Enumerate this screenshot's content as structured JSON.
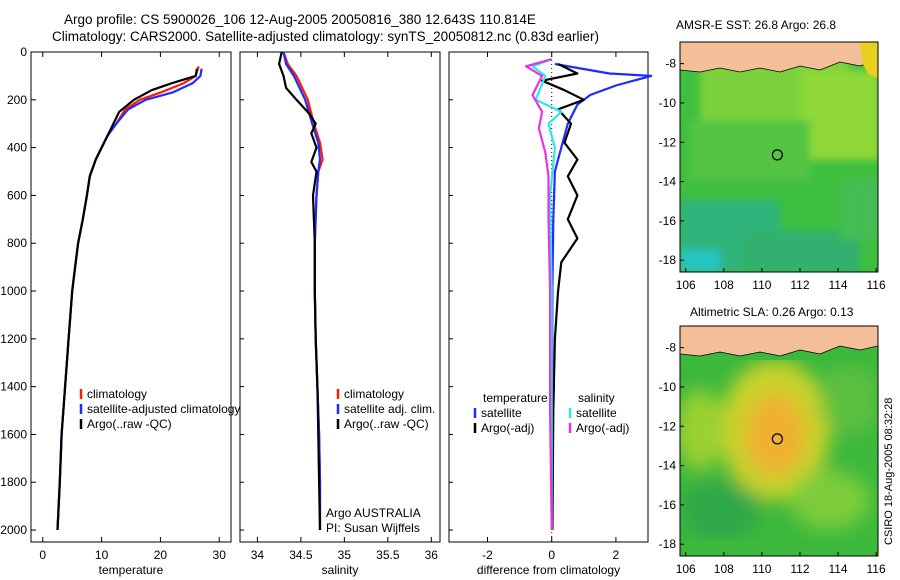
{
  "header": {
    "title_line1": "Argo profile: CS 5900026_106 12-Aug-2005 20050816_380 12.643S 110.814E",
    "title_line2": "Climatology: CARS2000. Satellite-adjusted climatology: synTS_20050812.nc (0.83d earlier)"
  },
  "credit": "CSIRO 18-Aug-2005 08:32:28",
  "colors": {
    "climatology": "#ff1a00",
    "satellite": "#1f2bff",
    "argo": "#000000",
    "salinity_satellite": "#33e6e6",
    "salinity_argo": "#e633e6",
    "land": "#f2bf99",
    "marker": "#000000"
  },
  "chart_data": [
    {
      "type": "line",
      "name": "temperature-profile",
      "xlabel": "temperature",
      "ylabel": "",
      "xlim": [
        -2,
        32
      ],
      "ylim": [
        2050,
        0
      ],
      "xticks": [
        0,
        10,
        20,
        30
      ],
      "yticks": [
        0,
        200,
        400,
        600,
        800,
        1000,
        1200,
        1400,
        1600,
        1800,
        2000
      ],
      "legend": [
        "climatology",
        "satellite-adjusted climatology",
        "Argo(..raw -QC)"
      ],
      "legend_position": "lower-right",
      "series": [
        {
          "name": "climatology",
          "color_key": "climatology",
          "points": [
            [
              26.5,
              60
            ],
            [
              26.0,
              100
            ],
            [
              24.0,
              130
            ],
            [
              20.0,
              170
            ],
            [
              16.5,
              200
            ],
            [
              14.0,
              240
            ],
            [
              12.5,
              300
            ],
            [
              11.0,
              350
            ],
            [
              10.0,
              400
            ],
            [
              9.0,
              450
            ],
            [
              8.0,
              520
            ],
            [
              7.5,
              600
            ],
            [
              6.8,
              700
            ],
            [
              6.0,
              800
            ],
            [
              5.5,
              900
            ],
            [
              5.0,
              1000
            ],
            [
              4.4,
              1200
            ],
            [
              3.8,
              1400
            ],
            [
              3.2,
              1600
            ],
            [
              2.9,
              1800
            ],
            [
              2.5,
              2000
            ]
          ]
        },
        {
          "name": "satellite-adjusted climatology",
          "color_key": "satellite",
          "points": [
            [
              27.0,
              70
            ],
            [
              26.8,
              100
            ],
            [
              25.5,
              130
            ],
            [
              22.0,
              170
            ],
            [
              17.5,
              200
            ],
            [
              14.5,
              240
            ],
            [
              12.5,
              300
            ],
            [
              11.0,
              350
            ],
            [
              10.0,
              400
            ],
            [
              9.0,
              450
            ],
            [
              8.0,
              520
            ],
            [
              7.5,
              600
            ],
            [
              6.8,
              700
            ],
            [
              6.0,
              800
            ],
            [
              5.5,
              900
            ],
            [
              5.0,
              1000
            ],
            [
              4.4,
              1200
            ],
            [
              3.8,
              1400
            ],
            [
              3.2,
              1600
            ],
            [
              2.9,
              1800
            ],
            [
              2.5,
              2000
            ]
          ]
        },
        {
          "name": "Argo(..raw -QC)",
          "color_key": "argo",
          "points": [
            [
              26.2,
              70
            ],
            [
              26.0,
              100
            ],
            [
              22.0,
              130
            ],
            [
              18.5,
              160
            ],
            [
              15.5,
              200
            ],
            [
              13.0,
              250
            ],
            [
              12.0,
              300
            ],
            [
              11.0,
              350
            ],
            [
              10.0,
              400
            ],
            [
              9.0,
              450
            ],
            [
              8.0,
              520
            ],
            [
              7.5,
              600
            ],
            [
              6.8,
              700
            ],
            [
              6.0,
              800
            ],
            [
              5.5,
              900
            ],
            [
              5.0,
              1000
            ],
            [
              4.4,
              1200
            ],
            [
              3.8,
              1400
            ],
            [
              3.2,
              1600
            ],
            [
              2.9,
              1800
            ],
            [
              2.5,
              2000
            ]
          ]
        }
      ]
    },
    {
      "type": "line",
      "name": "salinity-profile",
      "xlabel": "salinity",
      "ylabel": "",
      "xlim": [
        33.8,
        36.1
      ],
      "ylim": [
        2050,
        0
      ],
      "xticks": [
        34,
        34.5,
        35,
        35.5,
        36
      ],
      "yticks": [],
      "legend": [
        "climatology",
        "satellite adj. clim.",
        "Argo(..raw -QC)"
      ],
      "legend_position": "lower-right",
      "annotations": [
        "Argo AUSTRALIA",
        "PI: Susan Wijffels"
      ],
      "series": [
        {
          "name": "climatology",
          "color_key": "climatology",
          "points": [
            [
              34.3,
              0
            ],
            [
              34.35,
              50
            ],
            [
              34.45,
              100
            ],
            [
              34.58,
              200
            ],
            [
              34.65,
              300
            ],
            [
              34.72,
              380
            ],
            [
              34.75,
              450
            ],
            [
              34.7,
              500
            ],
            [
              34.68,
              600
            ],
            [
              34.66,
              800
            ],
            [
              34.66,
              1000
            ],
            [
              34.67,
              1200
            ],
            [
              34.69,
              1400
            ],
            [
              34.71,
              1600
            ],
            [
              34.72,
              1800
            ],
            [
              34.72,
              2000
            ]
          ]
        },
        {
          "name": "satellite adj. clim.",
          "color_key": "satellite",
          "points": [
            [
              34.3,
              0
            ],
            [
              34.33,
              50
            ],
            [
              34.42,
              100
            ],
            [
              34.55,
              200
            ],
            [
              34.63,
              300
            ],
            [
              34.7,
              380
            ],
            [
              34.72,
              450
            ],
            [
              34.7,
              500
            ],
            [
              34.68,
              600
            ],
            [
              34.66,
              800
            ],
            [
              34.66,
              1000
            ],
            [
              34.67,
              1200
            ],
            [
              34.69,
              1400
            ],
            [
              34.71,
              1600
            ],
            [
              34.72,
              1800
            ],
            [
              34.72,
              2000
            ]
          ]
        },
        {
          "name": "Argo(..raw -QC)",
          "color_key": "argo",
          "points": [
            [
              34.28,
              0
            ],
            [
              34.25,
              50
            ],
            [
              34.3,
              100
            ],
            [
              34.33,
              150
            ],
            [
              34.45,
              200
            ],
            [
              34.6,
              260
            ],
            [
              34.67,
              300
            ],
            [
              34.62,
              340
            ],
            [
              34.68,
              400
            ],
            [
              34.62,
              460
            ],
            [
              34.68,
              500
            ],
            [
              34.64,
              600
            ],
            [
              34.66,
              800
            ],
            [
              34.66,
              1000
            ],
            [
              34.67,
              1200
            ],
            [
              34.69,
              1400
            ],
            [
              34.7,
              1600
            ],
            [
              34.71,
              1800
            ],
            [
              34.72,
              2000
            ]
          ]
        }
      ]
    },
    {
      "type": "line",
      "name": "difference-from-climatology",
      "xlabel": "difference from climatology",
      "ylabel": "",
      "xlim": [
        -3.2,
        3
      ],
      "ylim": [
        2050,
        0
      ],
      "xticks": [
        -2,
        0,
        2
      ],
      "yticks": [],
      "legend": [
        "temperature",
        "satellite",
        "Argo(-adj)",
        "salinity",
        "satellite",
        "Argo(-adj)"
      ],
      "legend_position": "lower-center",
      "series": [
        {
          "name": "temperature satellite",
          "color_key": "satellite",
          "points": [
            [
              0.1,
              50
            ],
            [
              1.8,
              90
            ],
            [
              3.1,
              100
            ],
            [
              2.0,
              140
            ],
            [
              1.2,
              180
            ],
            [
              0.8,
              220
            ],
            [
              0.5,
              300
            ],
            [
              0.3,
              400
            ],
            [
              0.1,
              500
            ],
            [
              0.05,
              700
            ],
            [
              0.02,
              1000
            ],
            [
              0.01,
              1500
            ],
            [
              0.0,
              2000
            ]
          ]
        },
        {
          "name": "temperature Argo(-adj)",
          "color_key": "argo",
          "points": [
            [
              0.2,
              50
            ],
            [
              0.8,
              90
            ],
            [
              -0.3,
              120
            ],
            [
              0.4,
              160
            ],
            [
              1.0,
              200
            ],
            [
              0.2,
              240
            ],
            [
              0.6,
              300
            ],
            [
              0.4,
              380
            ],
            [
              0.8,
              450
            ],
            [
              0.5,
              520
            ],
            [
              0.8,
              600
            ],
            [
              0.5,
              700
            ],
            [
              0.8,
              780
            ],
            [
              0.3,
              880
            ],
            [
              0.2,
              1000
            ],
            [
              0.1,
              1200
            ],
            [
              0.05,
              1500
            ],
            [
              0.02,
              2000
            ]
          ]
        },
        {
          "name": "salinity satellite",
          "color_key": "salinity_satellite",
          "points": [
            [
              0.0,
              30
            ],
            [
              -0.6,
              60
            ],
            [
              -0.2,
              100
            ],
            [
              -0.5,
              200
            ],
            [
              0.3,
              250
            ],
            [
              -0.1,
              300
            ],
            [
              0.1,
              400
            ],
            [
              -0.05,
              600
            ],
            [
              0.0,
              1000
            ],
            [
              0.0,
              2000
            ]
          ]
        },
        {
          "name": "salinity Argo(-adj)",
          "color_key": "salinity_argo",
          "points": [
            [
              0.0,
              30
            ],
            [
              -0.8,
              60
            ],
            [
              -0.3,
              100
            ],
            [
              -0.6,
              180
            ],
            [
              -0.3,
              250
            ],
            [
              -0.4,
              320
            ],
            [
              -0.2,
              420
            ],
            [
              -0.1,
              520
            ],
            [
              -0.1,
              700
            ],
            [
              -0.05,
              1000
            ],
            [
              -0.05,
              1500
            ],
            [
              0.0,
              2000
            ]
          ]
        }
      ]
    },
    {
      "type": "heatmap",
      "name": "sst-map",
      "title": "AMSR-E SST: 26.8  Argo: 26.8",
      "xlim": [
        105.7,
        116.1
      ],
      "ylim": [
        -18.6,
        -6.9
      ],
      "xticks": [
        106,
        108,
        110,
        112,
        114,
        116
      ],
      "yticks": [
        -8,
        -10,
        -12,
        -14,
        -16,
        -18
      ],
      "marker": {
        "lon": 110.814,
        "lat": -12.643
      }
    },
    {
      "type": "heatmap",
      "name": "sla-map",
      "title": "Altimetric SLA: 0.26  Argo: 0.13",
      "xlim": [
        105.7,
        116.1
      ],
      "ylim": [
        -18.6,
        -6.9
      ],
      "xticks": [
        106,
        108,
        110,
        112,
        114,
        116
      ],
      "yticks": [
        -8,
        -10,
        -12,
        -14,
        -16,
        -18
      ],
      "marker": {
        "lon": 110.814,
        "lat": -12.643
      }
    }
  ]
}
